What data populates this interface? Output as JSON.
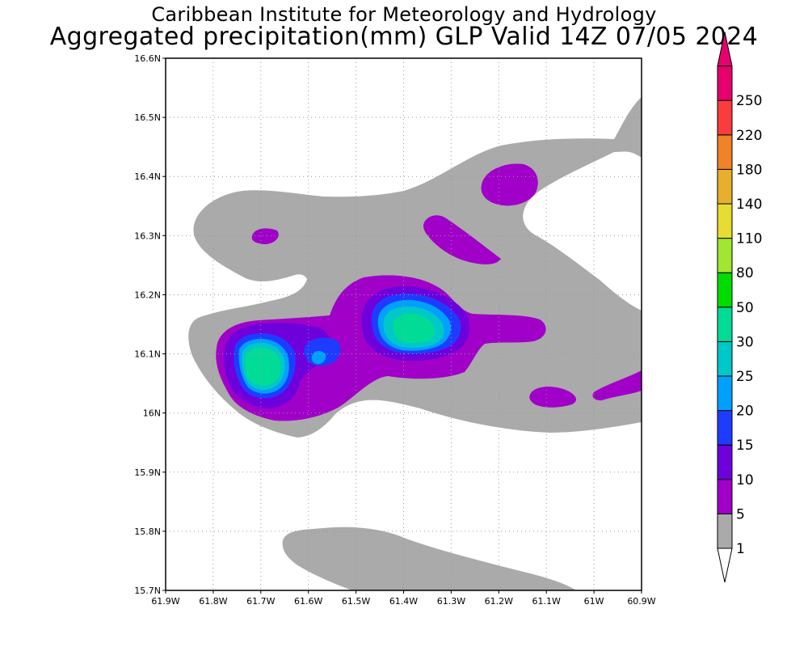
{
  "header": {
    "title": "Caribbean Institute for Meteorology and Hydrology",
    "subtitle": "Aggregated precipitation(mm) GLP Valid 14Z 07/05 2024"
  },
  "map": {
    "lon_range": [
      -61.9,
      -60.9
    ],
    "lat_range": [
      15.7,
      16.6
    ],
    "lon_ticks": [
      {
        "value": -61.9,
        "label": "61.9W"
      },
      {
        "value": -61.8,
        "label": "61.8W"
      },
      {
        "value": -61.7,
        "label": "61.7W"
      },
      {
        "value": -61.6,
        "label": "61.6W"
      },
      {
        "value": -61.5,
        "label": "61.5W"
      },
      {
        "value": -61.4,
        "label": "61.4W"
      },
      {
        "value": -61.3,
        "label": "61.3W"
      },
      {
        "value": -61.2,
        "label": "61.2W"
      },
      {
        "value": -61.1,
        "label": "61.1W"
      },
      {
        "value": -61.0,
        "label": "61W"
      },
      {
        "value": -60.9,
        "label": "60.9W"
      }
    ],
    "lat_ticks": [
      {
        "value": 15.7,
        "label": "15.7N"
      },
      {
        "value": 15.8,
        "label": "15.8N"
      },
      {
        "value": 15.9,
        "label": "15.9N"
      },
      {
        "value": 16.0,
        "label": "16N"
      },
      {
        "value": 16.1,
        "label": "16.1N"
      },
      {
        "value": 16.2,
        "label": "16.2N"
      },
      {
        "value": 16.3,
        "label": "16.3N"
      },
      {
        "value": 16.4,
        "label": "16.4N"
      },
      {
        "value": 16.5,
        "label": "16.5N"
      },
      {
        "value": 16.6,
        "label": "16.6N"
      }
    ],
    "grid": true
  },
  "legend": {
    "levels": [
      "1",
      "5",
      "10",
      "15",
      "20",
      "25",
      "30",
      "50",
      "80",
      "110",
      "140",
      "180",
      "220",
      "250"
    ],
    "colors": [
      "#aaaaaa",
      "#a000c8",
      "#6e00dc",
      "#1e3cff",
      "#00a0ff",
      "#00c8c8",
      "#00dc96",
      "#00dc00",
      "#a0e632",
      "#e6dc32",
      "#e6af2d",
      "#f08228",
      "#fa3c3c",
      "#e6006e"
    ]
  },
  "chart_data": {
    "type": "contour",
    "variable": "Aggregated precipitation(mm)",
    "levels": [
      1,
      5,
      10,
      15,
      20,
      25,
      30,
      50,
      80,
      110,
      140,
      180,
      220,
      250
    ],
    "xlim": [
      -61.9,
      -60.9
    ],
    "ylim": [
      15.7,
      16.6
    ],
    "features": [
      {
        "level_min": 1,
        "region": "broad band from 61.8W to 60.9W, 15.95N-16.55N"
      },
      {
        "level_min": 1,
        "region": "southern band 61.55W-61.2W near 15.75N-15.8N"
      },
      {
        "level_min": 5,
        "region": "main core 61.7W-61.1W, 16.0N-16.2N"
      },
      {
        "level_min": 5,
        "region": "small cells near 61.68W 16.3N, 61.32W 16.3N, 61.17W 16.38N, 61.08W 16.02N, 60.95W 16.05N"
      },
      {
        "level_min": 30,
        "peak_lon": -61.69,
        "peak_lat": 16.08
      },
      {
        "level_min": 25,
        "peak_lon": -61.37,
        "peak_lat": 16.14
      }
    ]
  }
}
